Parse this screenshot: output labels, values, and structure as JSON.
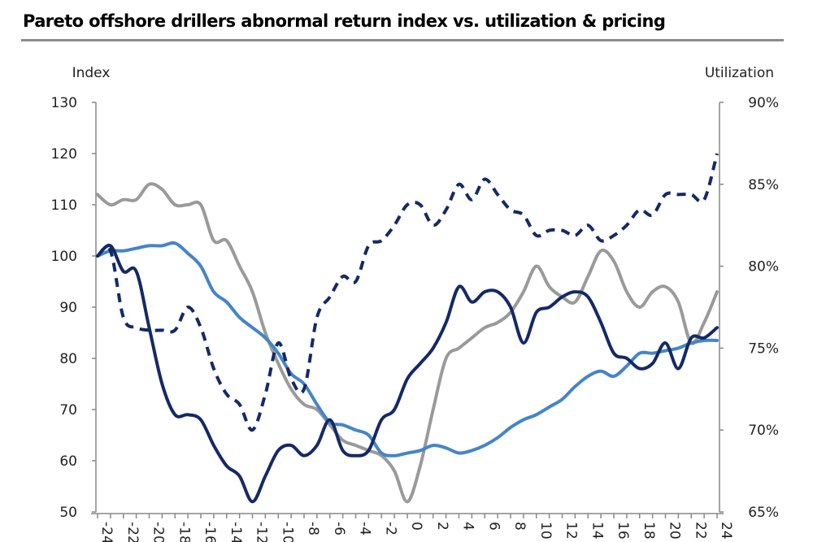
{
  "chart_data": {
    "type": "line",
    "title": "Pareto offshore drillers abnormal return index vs. utilization & pricing",
    "ylabel_left": "Index",
    "ylabel_right": "Utilization",
    "xlabel": "",
    "xlim": [
      -24,
      24
    ],
    "ylim_left": [
      50,
      130
    ],
    "ylim_right": [
      65,
      90
    ],
    "x_ticks": [
      "-24",
      "-22",
      "-20",
      "-18",
      "-16",
      "-14",
      "-12",
      "-10",
      "-8",
      "-6",
      "-4",
      "-2",
      "0",
      "2",
      "4",
      "6",
      "8",
      "10",
      "12",
      "14",
      "16",
      "18",
      "20",
      "22",
      "24"
    ],
    "y_left_ticks": [
      "50",
      "60",
      "70",
      "80",
      "90",
      "100",
      "110",
      "120",
      "130"
    ],
    "y_right_ticks": [
      "65%",
      "70%",
      "75%",
      "80%",
      "85%",
      "90%"
    ],
    "grid": false,
    "x": [
      -24,
      -23,
      -22,
      -21,
      -20,
      -19,
      -18,
      -17,
      -16,
      -15,
      -14,
      -13,
      -12,
      -11,
      -10,
      -9,
      -8,
      -7,
      -6,
      -5,
      -4,
      -3,
      -2,
      -1,
      0,
      1,
      2,
      3,
      4,
      5,
      6,
      7,
      8,
      9,
      10,
      11,
      12,
      13,
      14,
      15,
      16,
      17,
      18,
      19,
      20,
      21,
      22,
      23,
      24
    ],
    "series": [
      {
        "color": "#9a9a9a",
        "style": "solid",
        "values": [
          112,
          110,
          111,
          111,
          114,
          113,
          110,
          110,
          110,
          103,
          103,
          98,
          93,
          85,
          79,
          74,
          71,
          70,
          67,
          64,
          63,
          62,
          61,
          58,
          52,
          59,
          70,
          80,
          82,
          84,
          86,
          87,
          89,
          93,
          98,
          94,
          92,
          91,
          96,
          101,
          99,
          93,
          90,
          93,
          94,
          91,
          83,
          87,
          93
        ]
      },
      {
        "color": "#4485c8",
        "style": "solid",
        "values": [
          100,
          101,
          101,
          101.5,
          102,
          102,
          102.5,
          100.5,
          98,
          93,
          91,
          88,
          86,
          84,
          81,
          77,
          75,
          71,
          67.5,
          67,
          66,
          65,
          61.5,
          61,
          61.5,
          62,
          63,
          62.5,
          61.5,
          62,
          63,
          64.5,
          66.5,
          68,
          69,
          70.5,
          72,
          74.5,
          76.5,
          77.5,
          76.5,
          78.5,
          81,
          81,
          81.5,
          82,
          83,
          83.5,
          83.5
        ]
      },
      {
        "color": "#142a66",
        "style": "dashed",
        "values": [
          100,
          101,
          88,
          86,
          85.5,
          85.5,
          85.5,
          90,
          86,
          78,
          73,
          71,
          66,
          73,
          83,
          76,
          74,
          88,
          92,
          96,
          95,
          102,
          103,
          106,
          110,
          110,
          106,
          109,
          114,
          111,
          115,
          112,
          109,
          108,
          104,
          105,
          105,
          104,
          106,
          103,
          104,
          106,
          109,
          108,
          112,
          112,
          112,
          111,
          120
        ]
      },
      {
        "color": "#142a66",
        "style": "solid",
        "values": [
          100,
          102,
          97,
          97,
          86,
          75,
          69,
          69,
          68,
          63,
          59,
          57,
          52,
          57,
          62,
          63,
          61,
          63,
          68,
          62,
          61,
          62,
          68,
          70,
          76,
          79,
          82,
          87,
          94,
          91,
          93,
          93,
          90,
          83,
          89,
          90,
          92,
          93,
          92,
          87,
          81,
          80,
          78,
          79,
          83,
          78,
          84,
          84,
          86
        ]
      }
    ]
  }
}
